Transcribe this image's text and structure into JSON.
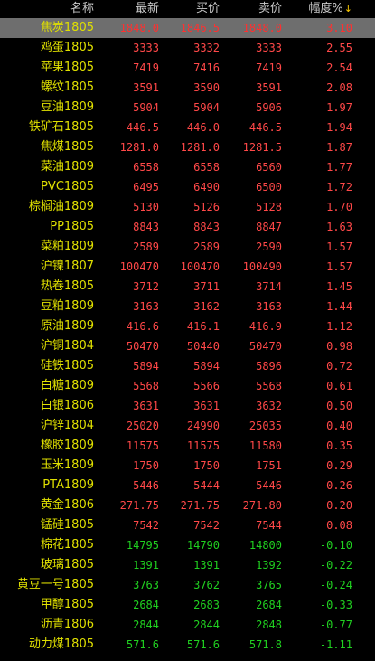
{
  "header": {
    "name": "名称",
    "last": "最新",
    "bid": "买价",
    "ask": "卖价",
    "change": "幅度%",
    "sort_arrow": "↓"
  },
  "colors": {
    "up": "#ff4848",
    "down": "#20d020",
    "name": "#e0e000",
    "selected_row_bg": "#6e6e6e"
  },
  "rows": [
    {
      "name": "焦炭1805",
      "last": "1848.0",
      "bid": "1846.5",
      "ask": "1848.0",
      "change": "3.10",
      "dir": "up"
    },
    {
      "name": "鸡蛋1805",
      "last": "3333",
      "bid": "3332",
      "ask": "3333",
      "change": "2.55",
      "dir": "up"
    },
    {
      "name": "苹果1805",
      "last": "7419",
      "bid": "7416",
      "ask": "7419",
      "change": "2.54",
      "dir": "up"
    },
    {
      "name": "螺纹1805",
      "last": "3591",
      "bid": "3590",
      "ask": "3591",
      "change": "2.08",
      "dir": "up"
    },
    {
      "name": "豆油1809",
      "last": "5904",
      "bid": "5904",
      "ask": "5906",
      "change": "1.97",
      "dir": "up"
    },
    {
      "name": "铁矿石1805",
      "last": "446.5",
      "bid": "446.0",
      "ask": "446.5",
      "change": "1.94",
      "dir": "up"
    },
    {
      "name": "焦煤1805",
      "last": "1281.0",
      "bid": "1281.0",
      "ask": "1281.5",
      "change": "1.87",
      "dir": "up"
    },
    {
      "name": "菜油1809",
      "last": "6558",
      "bid": "6558",
      "ask": "6560",
      "change": "1.77",
      "dir": "up"
    },
    {
      "name": "PVC1805",
      "last": "6495",
      "bid": "6490",
      "ask": "6500",
      "change": "1.72",
      "dir": "up"
    },
    {
      "name": "棕榈油1809",
      "last": "5130",
      "bid": "5126",
      "ask": "5128",
      "change": "1.70",
      "dir": "up"
    },
    {
      "name": "PP1805",
      "last": "8843",
      "bid": "8843",
      "ask": "8847",
      "change": "1.63",
      "dir": "up"
    },
    {
      "name": "菜粕1809",
      "last": "2589",
      "bid": "2589",
      "ask": "2590",
      "change": "1.57",
      "dir": "up"
    },
    {
      "name": "沪镍1807",
      "last": "100470",
      "bid": "100470",
      "ask": "100490",
      "change": "1.57",
      "dir": "up"
    },
    {
      "name": "热卷1805",
      "last": "3712",
      "bid": "3711",
      "ask": "3714",
      "change": "1.45",
      "dir": "up"
    },
    {
      "name": "豆粕1809",
      "last": "3163",
      "bid": "3162",
      "ask": "3163",
      "change": "1.44",
      "dir": "up"
    },
    {
      "name": "原油1809",
      "last": "416.6",
      "bid": "416.1",
      "ask": "416.9",
      "change": "1.12",
      "dir": "up"
    },
    {
      "name": "沪铜1804",
      "last": "50470",
      "bid": "50440",
      "ask": "50470",
      "change": "0.98",
      "dir": "up"
    },
    {
      "name": "硅铁1805",
      "last": "5894",
      "bid": "5894",
      "ask": "5896",
      "change": "0.72",
      "dir": "up"
    },
    {
      "name": "白糖1809",
      "last": "5568",
      "bid": "5566",
      "ask": "5568",
      "change": "0.61",
      "dir": "up"
    },
    {
      "name": "白银1806",
      "last": "3631",
      "bid": "3631",
      "ask": "3632",
      "change": "0.50",
      "dir": "up"
    },
    {
      "name": "沪锌1804",
      "last": "25020",
      "bid": "24990",
      "ask": "25035",
      "change": "0.40",
      "dir": "up"
    },
    {
      "name": "橡胶1809",
      "last": "11575",
      "bid": "11575",
      "ask": "11580",
      "change": "0.35",
      "dir": "up"
    },
    {
      "name": "玉米1809",
      "last": "1750",
      "bid": "1750",
      "ask": "1751",
      "change": "0.29",
      "dir": "up"
    },
    {
      "name": "PTA1809",
      "last": "5446",
      "bid": "5444",
      "ask": "5446",
      "change": "0.26",
      "dir": "up"
    },
    {
      "name": "黄金1806",
      "last": "271.75",
      "bid": "271.75",
      "ask": "271.80",
      "change": "0.20",
      "dir": "up"
    },
    {
      "name": "锰硅1805",
      "last": "7542",
      "bid": "7542",
      "ask": "7544",
      "change": "0.08",
      "dir": "up"
    },
    {
      "name": "棉花1805",
      "last": "14795",
      "bid": "14790",
      "ask": "14800",
      "change": "-0.10",
      "dir": "down"
    },
    {
      "name": "玻璃1805",
      "last": "1391",
      "bid": "1391",
      "ask": "1392",
      "change": "-0.22",
      "dir": "down"
    },
    {
      "name": "黄豆一号1805",
      "last": "3763",
      "bid": "3762",
      "ask": "3765",
      "change": "-0.24",
      "dir": "down"
    },
    {
      "name": "甲醇1805",
      "last": "2684",
      "bid": "2683",
      "ask": "2684",
      "change": "-0.33",
      "dir": "down"
    },
    {
      "name": "沥青1806",
      "last": "2844",
      "bid": "2844",
      "ask": "2848",
      "change": "-0.77",
      "dir": "down"
    },
    {
      "name": "动力煤1805",
      "last": "571.6",
      "bid": "571.6",
      "ask": "571.8",
      "change": "-1.11",
      "dir": "down"
    }
  ]
}
